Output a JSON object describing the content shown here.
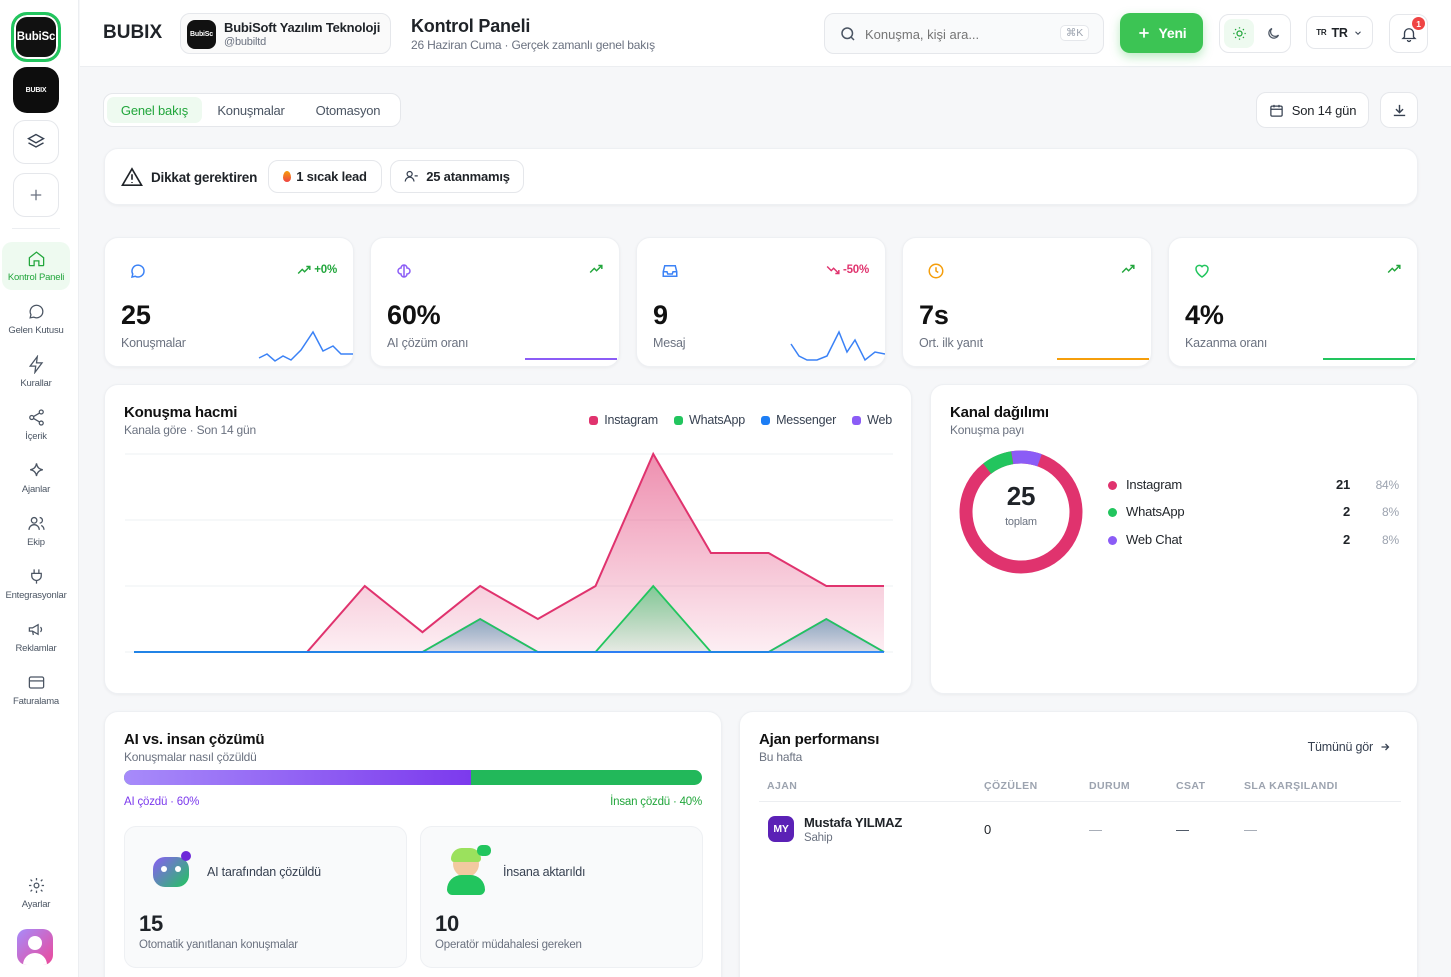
{
  "sidebar": {
    "workspace_label": "BubiSc",
    "workspace_logo": "BUBIX",
    "nav": [
      {
        "label": "Kontrol Paneli",
        "icon": "home-icon"
      },
      {
        "label": "Gelen Kutusu",
        "icon": "chat-icon"
      },
      {
        "label": "Kurallar",
        "icon": "bolt-icon"
      },
      {
        "label": "İçerik",
        "icon": "share-icon"
      },
      {
        "label": "Ajanlar",
        "icon": "sparkle-icon"
      },
      {
        "label": "Ekip",
        "icon": "users-icon"
      },
      {
        "label": "Entegrasyonlar",
        "icon": "plug-icon"
      },
      {
        "label": "Reklamlar",
        "icon": "megaphone-icon"
      },
      {
        "label": "Faturalama",
        "icon": "card-icon"
      }
    ],
    "settings_label": "Ayarlar"
  },
  "header": {
    "brand": "BUBIX",
    "org_name": "BubiSoft Yazılım Teknoloji",
    "org_handle": "@bubiltd",
    "org_avatar": "BubiSc",
    "title": "Kontrol Paneli",
    "subtitle": "26 Haziran Cuma · Gerçek zamanlı genel bakış",
    "search_placeholder": "Konuşma, kişi ara...",
    "search_shortcut": "⌘K",
    "new_button": "Yeni",
    "lang_flag": "TR",
    "lang": "TR",
    "notif_count": "1"
  },
  "tabs": [
    "Genel bakış",
    "Konuşmalar",
    "Otomasyon"
  ],
  "date_range": "Son 14 gün",
  "attention": {
    "label": "Dikkat gerektiren",
    "hot_lead": "1 sıcak lead",
    "unassigned": "25 atanmamış"
  },
  "kpis": [
    {
      "value": "25",
      "label": "Konuşmalar",
      "trend": "+0%",
      "trend_dir": "up",
      "color": "#3b82f6",
      "icon": "chat-bubble-icon"
    },
    {
      "value": "60%",
      "label": "AI çözüm oranı",
      "trend": "",
      "trend_dir": "up",
      "color": "#8b5cf6",
      "icon": "brain-icon"
    },
    {
      "value": "9",
      "label": "Mesaj",
      "trend": "-50%",
      "trend_dir": "down",
      "color": "#3b82f6",
      "icon": "inbox-icon"
    },
    {
      "value": "7s",
      "label": "Ort. ilk yanıt",
      "trend": "",
      "trend_dir": "up",
      "color": "#f59e0b",
      "icon": "clock-icon"
    },
    {
      "value": "4%",
      "label": "Kazanma oranı",
      "trend": "",
      "trend_dir": "up",
      "color": "#22c55e",
      "icon": "heart-icon"
    }
  ],
  "volume": {
    "title": "Konuşma hacmi",
    "subtitle": "Kanala göre · Son 14 gün",
    "legend": [
      {
        "name": "Instagram",
        "color": "#e0336e"
      },
      {
        "name": "WhatsApp",
        "color": "#22c55e"
      },
      {
        "name": "Messenger",
        "color": "#1d7ef5"
      },
      {
        "name": "Web",
        "color": "#8b5cf6"
      }
    ]
  },
  "chart_data": {
    "type": "area",
    "title": "Konuşma hacmi",
    "x": [
      1,
      2,
      3,
      4,
      5,
      6,
      7,
      8,
      9,
      10,
      11,
      12,
      13,
      14
    ],
    "ylim": [
      0,
      3
    ],
    "grid": true,
    "legend_position": "top-right",
    "series": [
      {
        "name": "Instagram",
        "color": "#e0336e",
        "values": [
          0,
          0,
          0,
          0,
          1,
          0.3,
          1,
          0.5,
          1,
          3,
          1.5,
          1.5,
          1,
          1
        ]
      },
      {
        "name": "WhatsApp",
        "color": "#22c55e",
        "values": [
          0,
          0,
          0,
          0,
          0,
          0,
          0.5,
          0,
          0,
          1,
          0,
          0,
          0.5,
          0
        ]
      },
      {
        "name": "Messenger",
        "color": "#1d7ef5",
        "values": [
          0,
          0,
          0,
          0,
          0,
          0,
          0,
          0,
          0,
          0,
          0,
          0,
          0,
          0
        ]
      },
      {
        "name": "Web",
        "color": "#8b5cf6",
        "values": [
          0,
          0,
          0,
          0,
          0,
          0,
          0.5,
          0,
          0,
          0,
          0,
          0,
          0.5,
          0
        ]
      }
    ]
  },
  "channel": {
    "title": "Kanal dağılımı",
    "subtitle": "Konuşma payı",
    "total": "25",
    "total_label": "toplam",
    "rows": [
      {
        "name": "Instagram",
        "count": "21",
        "pct": "84%",
        "color": "#e0336e"
      },
      {
        "name": "WhatsApp",
        "count": "2",
        "pct": "8%",
        "color": "#22c55e"
      },
      {
        "name": "Web Chat",
        "count": "2",
        "pct": "8%",
        "color": "#8b5cf6"
      }
    ]
  },
  "ai_vs_human": {
    "title": "AI vs. insan çözümü",
    "subtitle": "Konuşmalar nasıl çözüldü",
    "ai_pct": 0.6,
    "ai_label": "AI çözdü · 60%",
    "human_label": "İnsan çözdü · 40%",
    "ai_card_title": "AI tarafından çözüldü",
    "ai_card_value": "15",
    "ai_card_desc": "Otomatik yanıtlanan konuşmalar",
    "human_card_title": "İnsana aktarıldı",
    "human_card_value": "10",
    "human_card_desc": "Operatör müdahalesi gereken"
  },
  "agents": {
    "title": "Ajan performansı",
    "subtitle": "Bu hafta",
    "see_all": "Tümünü gör",
    "columns": [
      "AJAN",
      "ÇÖZÜLEN",
      "DURUM",
      "CSAT",
      "SLA KARŞILANDI"
    ],
    "rows": [
      {
        "initials": "MY",
        "name": "Mustafa YILMAZ",
        "role": "Sahip",
        "solved": "0",
        "status": "—",
        "csat": "—",
        "sla": "—"
      }
    ]
  }
}
